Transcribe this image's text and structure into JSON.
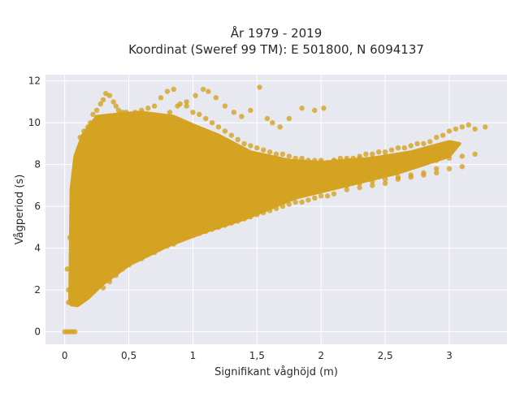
{
  "chart_data": {
    "type": "scatter",
    "title": "År 1979 - 2019",
    "subtitle": "Koordinat (Sweref 99 TM): E 501800, N 6094137",
    "xlabel": "Signifikant våghöjd (m)",
    "ylabel": "Vågperiod (s)",
    "xlim": [
      -0.15,
      3.45
    ],
    "ylim": [
      -0.6,
      12.3
    ],
    "x_ticks": [
      0,
      0.5,
      1,
      1.5,
      2,
      2.5,
      3
    ],
    "x_tick_labels": [
      "0",
      "0,5",
      "1",
      "1,5",
      "2",
      "2,5",
      "3"
    ],
    "y_ticks": [
      0,
      2,
      4,
      6,
      8,
      10,
      12
    ],
    "y_tick_labels": [
      "0",
      "2",
      "4",
      "6",
      "8",
      "10",
      "12"
    ],
    "grid": true,
    "legend": "none",
    "marker_color": "#d4a322",
    "background_color": "#e8e8f0",
    "points_x": [
      0.0,
      0.02,
      0.04,
      0.06,
      0.08,
      0.03,
      0.05,
      0.07,
      0.02,
      0.04,
      0.06,
      0.08,
      0.1,
      0.03,
      0.05,
      0.07,
      0.09,
      0.11,
      0.12,
      0.15,
      0.18,
      0.2,
      0.22,
      0.25,
      0.28,
      0.3,
      0.32,
      0.35,
      0.38,
      0.4,
      0.42,
      0.45,
      0.48,
      0.5,
      0.55,
      0.6,
      0.65,
      0.7,
      0.75,
      0.8,
      0.85,
      0.9,
      0.95,
      1.0,
      1.05,
      1.1,
      1.15,
      1.2,
      1.25,
      1.3,
      1.35,
      1.4,
      1.45,
      1.5,
      1.55,
      1.6,
      1.65,
      1.7,
      1.75,
      1.8,
      1.85,
      1.9,
      1.95,
      2.0,
      2.05,
      2.1,
      2.15,
      2.2,
      2.25,
      2.3,
      2.35,
      2.4,
      2.45,
      2.5,
      2.55,
      2.6,
      2.65,
      2.7,
      2.75,
      2.8,
      2.85,
      2.9,
      2.95,
      3.0,
      3.05,
      3.1,
      3.15,
      3.2,
      3.28,
      0.3,
      0.35,
      0.4,
      0.45,
      0.5,
      0.55,
      0.6,
      0.65,
      0.7,
      0.75,
      0.8,
      0.85,
      0.9,
      0.95,
      1.0,
      1.05,
      1.1,
      1.15,
      1.2,
      1.25,
      1.3,
      1.35,
      1.4,
      1.45,
      1.5,
      1.55,
      1.6,
      1.65,
      1.7,
      1.75,
      1.8,
      1.85,
      1.9,
      1.95,
      2.0,
      2.05,
      2.1,
      2.2,
      2.3,
      2.4,
      2.5,
      2.6,
      2.7,
      2.8,
      2.9,
      3.0,
      3.1,
      0.1,
      0.15,
      0.2,
      0.25,
      0.3,
      0.35,
      0.4,
      0.45,
      0.5,
      0.55,
      0.6,
      0.65,
      0.7,
      0.75,
      0.8,
      0.85,
      0.9,
      0.95,
      1.0,
      1.1,
      1.2,
      1.3,
      1.4,
      1.5,
      1.6,
      1.7,
      1.8,
      1.9,
      2.0,
      2.1,
      2.2,
      2.3,
      2.4,
      2.5,
      2.6,
      2.7,
      2.8,
      2.9,
      3.0,
      0.28,
      0.35,
      0.42,
      0.48,
      0.55,
      0.62,
      0.68,
      0.75,
      0.82,
      0.88,
      0.95,
      1.02,
      1.08,
      1.12,
      1.18,
      1.25,
      1.32,
      1.38,
      1.45,
      1.52,
      1.58,
      1.62,
      1.68,
      1.75,
      1.85,
      1.95,
      2.02,
      0.18,
      0.22,
      0.26,
      0.3,
      0.34,
      0.38,
      0.42,
      0.46,
      0.5,
      0.54,
      0.58,
      0.62,
      0.66,
      0.7,
      0.74,
      0.78,
      0.82,
      0.86,
      0.9,
      0.94,
      0.98,
      1.02,
      1.06,
      0.15,
      0.2,
      0.25,
      0.3,
      0.35,
      0.4,
      0.45,
      0.5,
      0.55,
      0.6,
      0.65,
      0.7,
      0.75,
      0.8,
      0.85,
      0.9,
      0.95,
      1.0,
      1.05,
      1.1,
      1.15,
      1.2,
      1.25,
      1.3,
      1.35,
      1.4,
      1.45,
      1.5,
      1.55,
      1.6,
      1.65,
      1.7,
      1.75,
      1.8,
      1.9,
      2.0,
      2.1,
      2.2,
      2.3,
      2.4,
      2.5,
      2.6,
      2.7,
      2.8,
      2.9,
      3.0,
      3.1,
      3.2,
      0.12,
      0.16,
      0.2,
      0.24,
      0.28,
      0.32,
      0.36,
      0.4,
      0.44,
      0.48,
      0.52,
      0.56,
      0.6,
      0.64,
      0.68,
      0.72,
      0.76,
      0.8,
      0.84,
      0.88,
      0.92,
      0.96,
      1.0,
      1.1,
      1.2,
      1.3,
      1.4,
      1.5,
      1.6,
      1.7,
      1.8,
      1.9,
      2.0,
      2.1,
      2.2,
      2.3,
      2.4,
      2.5,
      2.6,
      2.7,
      2.8,
      2.9
    ],
    "points_y": [
      0.0,
      0.0,
      0.0,
      0.0,
      0.0,
      1.4,
      1.5,
      1.6,
      3.0,
      4.5,
      5.8,
      7.0,
      8.2,
      2.0,
      3.5,
      5.0,
      6.5,
      8.8,
      9.3,
      9.6,
      9.8,
      10.0,
      10.4,
      10.6,
      10.9,
      11.1,
      11.4,
      11.3,
      11.0,
      10.8,
      10.6,
      10.5,
      10.5,
      10.4,
      10.5,
      10.6,
      10.7,
      10.8,
      11.2,
      11.5,
      11.6,
      10.9,
      10.8,
      10.5,
      10.4,
      10.2,
      10.0,
      9.8,
      9.6,
      9.4,
      9.2,
      9.0,
      8.9,
      8.8,
      8.7,
      8.6,
      8.5,
      8.5,
      8.4,
      8.3,
      8.3,
      8.2,
      8.2,
      8.2,
      8.1,
      8.2,
      8.3,
      8.3,
      8.3,
      8.4,
      8.5,
      8.5,
      8.6,
      8.6,
      8.7,
      8.8,
      8.8,
      8.9,
      9.0,
      9.0,
      9.1,
      9.3,
      9.4,
      9.6,
      9.7,
      9.8,
      9.9,
      9.7,
      9.8,
      2.1,
      2.4,
      2.7,
      3.0,
      3.2,
      3.4,
      3.5,
      3.7,
      3.8,
      4.0,
      4.1,
      4.2,
      4.4,
      4.5,
      4.6,
      4.7,
      4.8,
      4.9,
      5.0,
      5.1,
      5.2,
      5.3,
      5.4,
      5.5,
      5.6,
      5.7,
      5.8,
      5.9,
      6.0,
      6.1,
      6.2,
      6.2,
      6.3,
      6.4,
      6.5,
      6.5,
      6.6,
      6.8,
      6.9,
      7.0,
      7.1,
      7.3,
      7.4,
      7.5,
      7.6,
      7.8,
      7.9,
      5.5,
      6.0,
      6.5,
      7.0,
      7.5,
      7.8,
      8.0,
      8.0,
      8.1,
      8.0,
      8.1,
      8.0,
      7.9,
      8.0,
      7.9,
      7.8,
      7.8,
      7.9,
      7.8,
      7.8,
      7.9,
      7.9,
      8.0,
      8.0,
      8.0,
      8.0,
      8.1,
      8.1,
      8.1,
      8.2,
      8.2,
      8.3,
      8.3,
      8.4,
      8.4,
      8.5,
      8.6,
      8.7,
      8.8,
      9.0,
      9.2,
      9.3,
      9.5,
      9.8,
      10.0,
      10.2,
      10.0,
      10.5,
      10.8,
      11.0,
      11.3,
      11.6,
      11.5,
      11.2,
      10.8,
      10.5,
      10.3,
      10.6,
      11.7,
      10.2,
      10.0,
      9.8,
      10.2,
      10.7,
      10.6,
      10.7,
      3.5,
      4.0,
      4.5,
      5.0,
      5.5,
      6.0,
      6.3,
      6.5,
      6.6,
      6.7,
      6.8,
      6.9,
      7.0,
      7.0,
      7.1,
      7.1,
      7.2,
      7.2,
      7.3,
      7.3,
      7.4,
      7.4,
      7.5,
      4.0,
      4.5,
      5.0,
      5.5,
      6.0,
      6.3,
      6.6,
      6.8,
      7.0,
      7.1,
      7.2,
      7.2,
      7.3,
      7.3,
      7.4,
      7.4,
      7.4,
      7.5,
      7.5,
      7.5,
      7.5,
      7.5,
      7.5,
      7.5,
      7.5,
      7.5,
      7.5,
      7.5,
      7.6,
      7.6,
      7.6,
      7.6,
      7.6,
      7.6,
      7.6,
      7.6,
      7.6,
      7.7,
      7.7,
      7.8,
      7.8,
      7.9,
      8.0,
      8.1,
      8.2,
      8.3,
      8.4,
      8.5,
      2.5,
      3.0,
      3.3,
      3.6,
      3.9,
      4.2,
      4.5,
      4.7,
      4.9,
      5.1,
      5.3,
      5.4,
      5.5,
      5.6,
      5.7,
      5.8,
      5.9,
      6.0,
      6.0,
      6.1,
      6.1,
      6.2,
      6.2,
      6.3,
      6.3,
      6.4,
      6.4,
      6.5,
      6.5,
      6.6,
      6.7,
      6.8,
      6.8,
      6.9,
      7.0,
      7.1,
      7.2,
      7.3,
      7.4,
      7.5,
      7.6,
      7.8
    ]
  }
}
